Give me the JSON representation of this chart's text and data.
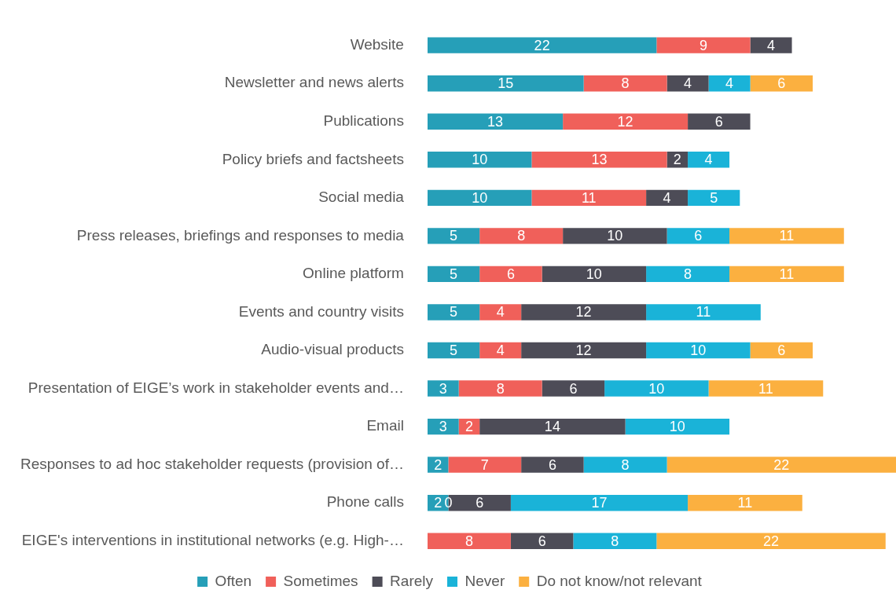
{
  "chart_data": {
    "type": "bar",
    "orientation": "horizontal",
    "stacked": true,
    "tick_labels": "y",
    "legend": "bottom",
    "data_labels": true,
    "annotations": [
      {
        "text": "0",
        "x": 2,
        "y": "Phone calls"
      }
    ],
    "categories": [
      "Website",
      "Newsletter and news alerts",
      "Publications",
      "Policy briefs and factsheets",
      "Social media",
      "Press releases, briefings and responses to media",
      "Online platform",
      "Events and country visits",
      "Audio-visual products",
      "Presentation of EIGE’s work in stakeholder events and…",
      "Email",
      "Responses to ad hoc stakeholder requests (provision of…",
      "Phone calls",
      "EIGE's interventions in institutional networks (e.g. High-…"
    ],
    "series": [
      {
        "name": "Often",
        "color": "#269fb8",
        "values": [
          22,
          15,
          13,
          10,
          10,
          5,
          5,
          5,
          5,
          3,
          3,
          2,
          2,
          null
        ]
      },
      {
        "name": "Sometimes",
        "color": "#f0605a",
        "values": [
          9,
          8,
          12,
          13,
          11,
          8,
          6,
          4,
          4,
          8,
          2,
          7,
          0,
          8
        ],
        "value_labels": [
          "9",
          "8",
          "12",
          "13",
          "11",
          "8",
          "6",
          "4",
          "4",
          "8",
          "2",
          "7",
          null,
          "8"
        ]
      },
      {
        "name": "Rarely",
        "color": "#4d4c57",
        "values": [
          4,
          4,
          6,
          2,
          4,
          10,
          10,
          12,
          12,
          6,
          14,
          6,
          6,
          6
        ]
      },
      {
        "name": "Never",
        "color": "#1ab3d8",
        "values": [
          null,
          4,
          null,
          4,
          5,
          6,
          8,
          11,
          10,
          10,
          10,
          8,
          17,
          8
        ]
      },
      {
        "name": "Do not know/not relevant",
        "color": "#fbb040",
        "values": [
          null,
          6,
          null,
          null,
          null,
          11,
          11,
          null,
          6,
          11,
          null,
          22,
          11,
          22
        ]
      }
    ]
  }
}
